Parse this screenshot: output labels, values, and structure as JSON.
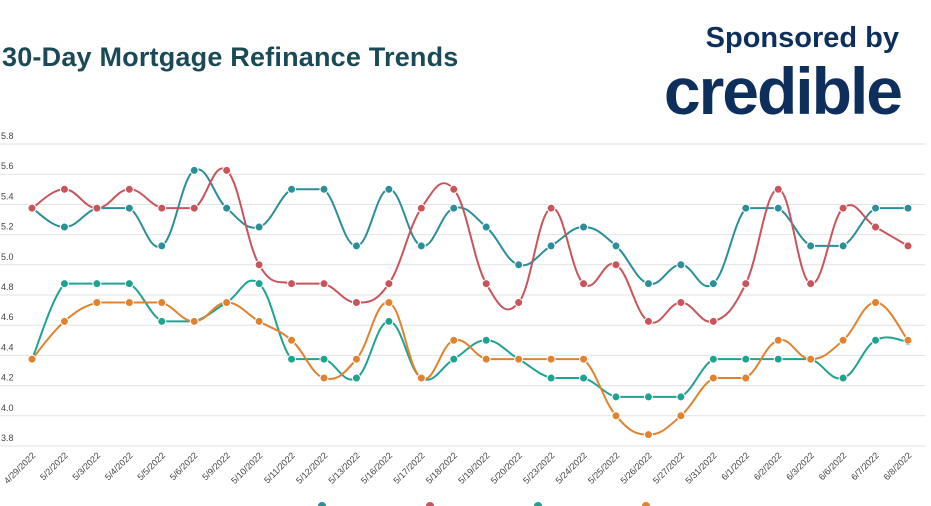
{
  "header": {
    "title": "30-Day Mortgage Refinance Trends",
    "sponsor_text": "Sponsored by",
    "logo_text": "credible"
  },
  "chart_data": {
    "type": "line",
    "title": "30-Day Mortgage Refinance Trends",
    "ylim": [
      3.8,
      5.8
    ],
    "yticks": [
      "3.8",
      "4.0",
      "4.2",
      "4.4",
      "4.6",
      "4.8",
      "5.0",
      "5.2",
      "5.4",
      "5.6",
      "5.8"
    ],
    "grid": true,
    "legend": "bottom",
    "categories": [
      "4/29/2022",
      "5/2/2022",
      "5/3/2022",
      "5/4/2022",
      "5/5/2022",
      "5/6/2022",
      "5/9/2022",
      "5/10/2022",
      "5/11/2022",
      "5/12/2022",
      "5/13/2022",
      "5/16/2022",
      "5/17/2022",
      "5/18/2022",
      "5/19/2022",
      "5/20/2022",
      "5/23/2022",
      "5/24/2022",
      "5/25/2022",
      "5/26/2022",
      "5/27/2022",
      "5/31/2022",
      "6/1/2022",
      "6/2/2022",
      "6/3/2022",
      "6/6/2022",
      "6/7/2022",
      "6/8/2022"
    ],
    "series": [
      {
        "color": "#2b8f99",
        "values": [
          5.375,
          5.25,
          5.375,
          5.375,
          5.125,
          5.625,
          5.375,
          5.25,
          5.5,
          5.5,
          5.125,
          5.5,
          5.125,
          5.375,
          5.25,
          5.0,
          5.125,
          5.25,
          5.125,
          4.875,
          5.0,
          4.875,
          5.375,
          5.375,
          5.125,
          5.125,
          5.375,
          5.375
        ]
      },
      {
        "color": "#c9545c",
        "values": [
          5.375,
          5.5,
          5.375,
          5.5,
          5.375,
          5.375,
          5.625,
          5.0,
          4.875,
          4.875,
          4.75,
          4.875,
          5.375,
          5.5,
          4.875,
          4.75,
          5.375,
          4.875,
          5.0,
          4.625,
          4.75,
          4.625,
          4.875,
          5.5,
          4.875,
          5.375,
          5.25,
          5.125
        ]
      },
      {
        "color": "#1fa391",
        "values": [
          4.375,
          4.875,
          4.875,
          4.875,
          4.625,
          4.625,
          4.75,
          4.875,
          4.375,
          4.375,
          4.25,
          4.625,
          4.25,
          4.375,
          4.5,
          4.375,
          4.25,
          4.25,
          4.125,
          4.125,
          4.125,
          4.375,
          4.375,
          4.375,
          4.375,
          4.25,
          4.5,
          4.49
        ]
      },
      {
        "color": "#e0822e",
        "values": [
          4.375,
          4.625,
          4.75,
          4.75,
          4.75,
          4.625,
          4.75,
          4.625,
          4.5,
          4.25,
          4.375,
          4.75,
          4.25,
          4.5,
          4.375,
          4.375,
          4.375,
          4.375,
          4.0,
          3.875,
          4.0,
          4.25,
          4.25,
          4.5,
          4.375,
          4.5,
          4.75,
          4.5
        ]
      }
    ]
  }
}
